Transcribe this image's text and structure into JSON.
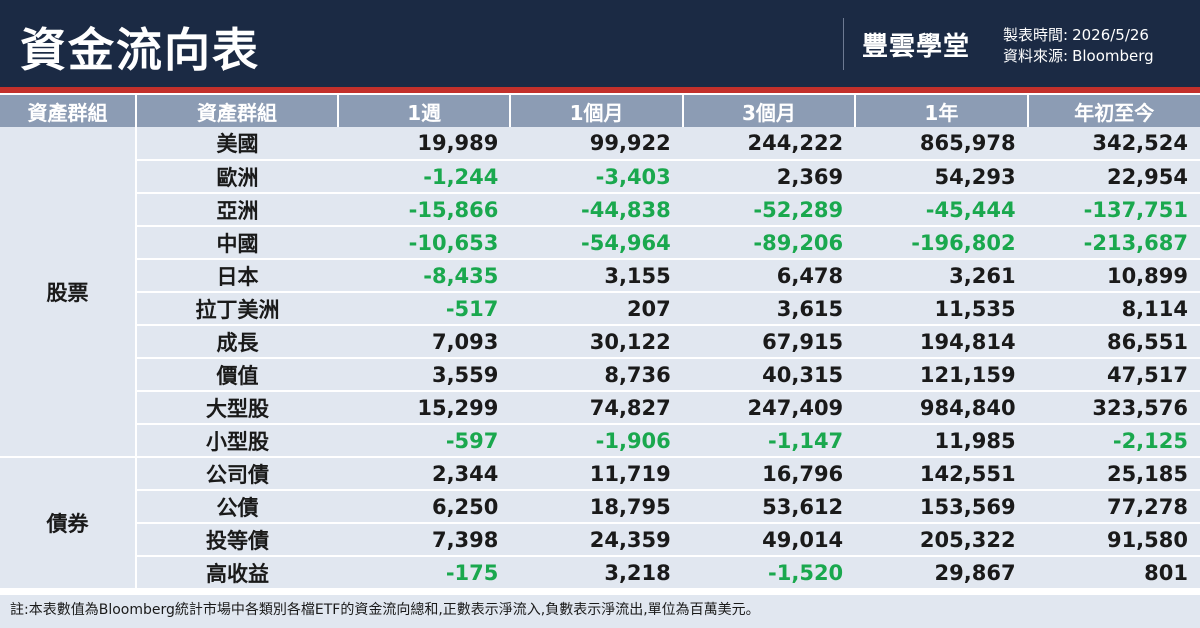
{
  "header": {
    "title": "資金流向表",
    "logo": "豐雲學堂",
    "date_label": "製表時間:",
    "date_value": "2026/5/26",
    "source_label": "資料來源:",
    "source_value": "Bloomberg"
  },
  "table": {
    "columns": [
      "資產群組",
      "資產群組",
      "1週",
      "1個月",
      "3個月",
      "1年",
      "年初至今"
    ],
    "groups": [
      {
        "category": "股票",
        "rows": [
          {
            "name": "美國",
            "values": [
              "19,989",
              "99,922",
              "244,222",
              "865,978",
              "342,524"
            ]
          },
          {
            "name": "歐洲",
            "values": [
              "-1,244",
              "-3,403",
              "2,369",
              "54,293",
              "22,954"
            ]
          },
          {
            "name": "亞洲",
            "values": [
              "-15,866",
              "-44,838",
              "-52,289",
              "-45,444",
              "-137,751"
            ]
          },
          {
            "name": "中國",
            "values": [
              "-10,653",
              "-54,964",
              "-89,206",
              "-196,802",
              "-213,687"
            ]
          },
          {
            "name": "日本",
            "values": [
              "-8,435",
              "3,155",
              "6,478",
              "3,261",
              "10,899"
            ]
          },
          {
            "name": "拉丁美洲",
            "values": [
              "-517",
              "207",
              "3,615",
              "11,535",
              "8,114"
            ]
          },
          {
            "name": "成長",
            "values": [
              "7,093",
              "30,122",
              "67,915",
              "194,814",
              "86,551"
            ]
          },
          {
            "name": "價值",
            "values": [
              "3,559",
              "8,736",
              "40,315",
              "121,159",
              "47,517"
            ]
          },
          {
            "name": "大型股",
            "values": [
              "15,299",
              "74,827",
              "247,409",
              "984,840",
              "323,576"
            ]
          },
          {
            "name": "小型股",
            "values": [
              "-597",
              "-1,906",
              "-1,147",
              "11,985",
              "-2,125"
            ]
          }
        ]
      },
      {
        "category": "債券",
        "rows": [
          {
            "name": "公司債",
            "values": [
              "2,344",
              "11,719",
              "16,796",
              "142,551",
              "25,185"
            ]
          },
          {
            "name": "公債",
            "values": [
              "6,250",
              "18,795",
              "53,612",
              "153,569",
              "77,278"
            ]
          },
          {
            "name": "投等債",
            "values": [
              "7,398",
              "24,359",
              "49,014",
              "205,322",
              "91,580"
            ]
          },
          {
            "name": "高收益",
            "values": [
              "-175",
              "3,218",
              "-1,520",
              "29,867",
              "801"
            ]
          }
        ]
      }
    ]
  },
  "footnote": "註:本表數值為Bloomberg統計市場中各類別各檔ETF的資金流向總和,正數表示淨流入,負數表示淨流出,單位為百萬美元。",
  "colors": {
    "header_bg": "#1b2a44",
    "accent_red": "#c3302b",
    "negative_green": "#1aa84e",
    "table_header_bg": "#8c9cb4",
    "table_body_bg": "#e1e7f0"
  }
}
